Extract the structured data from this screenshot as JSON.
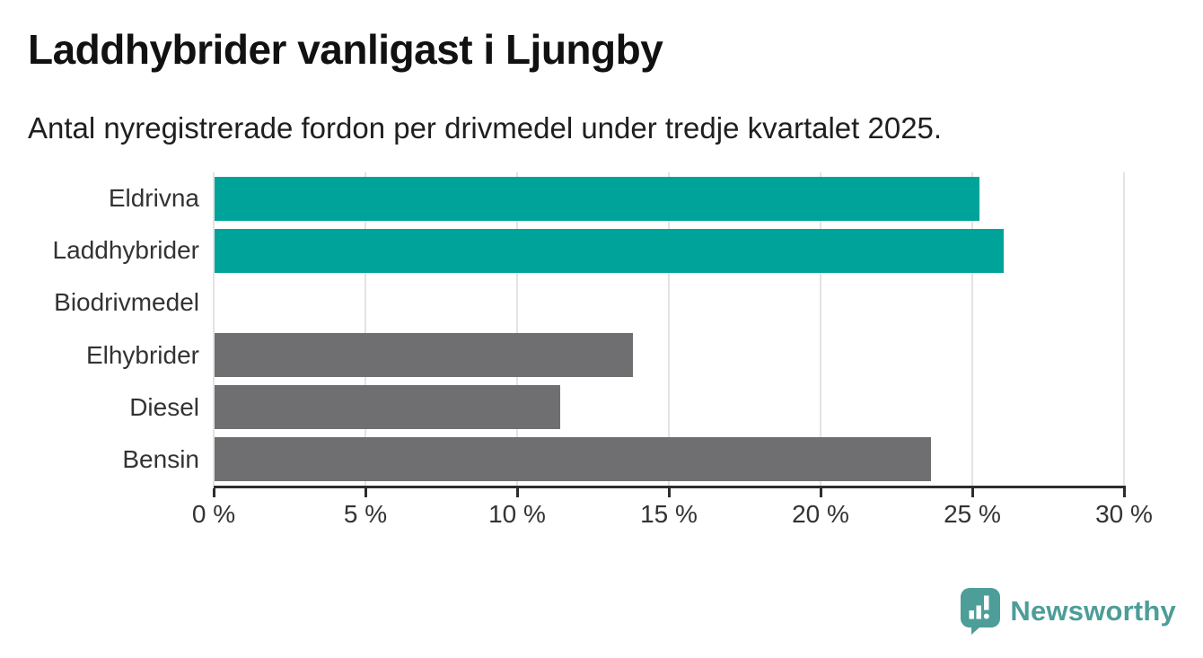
{
  "header": {
    "title": "Laddhybrider vanligast i Ljungby",
    "subtitle": "Antal nyregistrerade fordon per drivmedel under tredje kvartalet 2025."
  },
  "chart_data": {
    "type": "bar",
    "orientation": "horizontal",
    "title": "Laddhybrider vanligast i Ljungby",
    "subtitle": "Antal nyregistrerade fordon per drivmedel under tredje kvartalet 2025.",
    "categories": [
      "Eldrivna",
      "Laddhybrider",
      "Biodrivmedel",
      "Elhybrider",
      "Diesel",
      "Bensin"
    ],
    "values": [
      25.2,
      26.0,
      0.0,
      13.8,
      11.4,
      23.6
    ],
    "unit": "%",
    "xlim": [
      0,
      30
    ],
    "x_ticks": [
      0,
      5,
      10,
      15,
      20,
      25,
      30
    ],
    "x_tick_labels": [
      "0 %",
      "5 %",
      "10 %",
      "15 %",
      "20 %",
      "25 %",
      "30 %"
    ],
    "bar_colors": [
      "#00a39a",
      "#00a39a",
      "#6f6f72",
      "#6f6f72",
      "#6f6f72",
      "#6f6f72"
    ],
    "highlight_color": "#00a39a",
    "default_color": "#6f6f72",
    "gridline_color": "#e3e3e3",
    "axis_color": "#2d2d2d",
    "grid": true,
    "legend": false
  },
  "footer": {
    "brand": "Newsworthy",
    "brand_color": "#4d9d98",
    "logo_icon": "newsworthy-speech-bubble-chart-icon"
  }
}
